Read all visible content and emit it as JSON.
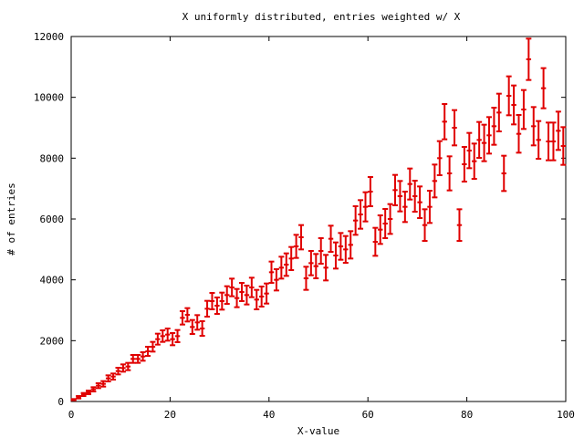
{
  "chart_data": {
    "type": "scatter",
    "title": "X uniformly distributed, entries weighted w/ X",
    "xlabel": "X-value",
    "ylabel": "# of entries",
    "xlim": [
      0,
      100
    ],
    "ylim": [
      0,
      12000
    ],
    "x_ticks": [
      0,
      20,
      40,
      60,
      80,
      100
    ],
    "y_ticks": [
      0,
      2000,
      4000,
      6000,
      8000,
      10000,
      12000
    ],
    "grid": false,
    "legend": "none",
    "color": "#e00000",
    "series": [
      {
        "points": [
          {
            "x": 0.5,
            "y": 60,
            "err": 20
          },
          {
            "x": 1.5,
            "y": 140,
            "err": 40
          },
          {
            "x": 2.5,
            "y": 230,
            "err": 50
          },
          {
            "x": 3.5,
            "y": 300,
            "err": 60
          },
          {
            "x": 4.5,
            "y": 400,
            "err": 70
          },
          {
            "x": 5.5,
            "y": 520,
            "err": 80
          },
          {
            "x": 6.5,
            "y": 580,
            "err": 90
          },
          {
            "x": 7.5,
            "y": 760,
            "err": 100
          },
          {
            "x": 8.5,
            "y": 820,
            "err": 100
          },
          {
            "x": 9.5,
            "y": 1000,
            "err": 110
          },
          {
            "x": 10.5,
            "y": 1100,
            "err": 120
          },
          {
            "x": 11.5,
            "y": 1150,
            "err": 120
          },
          {
            "x": 12.5,
            "y": 1400,
            "err": 130
          },
          {
            "x": 13.5,
            "y": 1400,
            "err": 130
          },
          {
            "x": 14.5,
            "y": 1480,
            "err": 140
          },
          {
            "x": 15.5,
            "y": 1650,
            "err": 150
          },
          {
            "x": 16.5,
            "y": 1800,
            "err": 160
          },
          {
            "x": 17.5,
            "y": 2050,
            "err": 180
          },
          {
            "x": 18.5,
            "y": 2150,
            "err": 190
          },
          {
            "x": 19.5,
            "y": 2200,
            "err": 200
          },
          {
            "x": 20.5,
            "y": 2050,
            "err": 200
          },
          {
            "x": 21.5,
            "y": 2150,
            "err": 200
          },
          {
            "x": 22.5,
            "y": 2750,
            "err": 220
          },
          {
            "x": 23.5,
            "y": 2850,
            "err": 220
          },
          {
            "x": 24.5,
            "y": 2450,
            "err": 230
          },
          {
            "x": 25.5,
            "y": 2600,
            "err": 240
          },
          {
            "x": 26.5,
            "y": 2400,
            "err": 240
          },
          {
            "x": 27.5,
            "y": 3050,
            "err": 260
          },
          {
            "x": 28.5,
            "y": 3300,
            "err": 270
          },
          {
            "x": 29.5,
            "y": 3150,
            "err": 270
          },
          {
            "x": 30.5,
            "y": 3300,
            "err": 280
          },
          {
            "x": 31.5,
            "y": 3500,
            "err": 290
          },
          {
            "x": 32.5,
            "y": 3750,
            "err": 290
          },
          {
            "x": 33.5,
            "y": 3400,
            "err": 300
          },
          {
            "x": 34.5,
            "y": 3600,
            "err": 300
          },
          {
            "x": 35.5,
            "y": 3500,
            "err": 310
          },
          {
            "x": 36.5,
            "y": 3750,
            "err": 320
          },
          {
            "x": 37.5,
            "y": 3350,
            "err": 320
          },
          {
            "x": 38.5,
            "y": 3450,
            "err": 330
          },
          {
            "x": 39.5,
            "y": 3550,
            "err": 330
          },
          {
            "x": 40.5,
            "y": 4250,
            "err": 350
          },
          {
            "x": 41.5,
            "y": 4000,
            "err": 350
          },
          {
            "x": 42.5,
            "y": 4400,
            "err": 360
          },
          {
            "x": 43.5,
            "y": 4500,
            "err": 370
          },
          {
            "x": 44.5,
            "y": 4700,
            "err": 380
          },
          {
            "x": 45.5,
            "y": 5100,
            "err": 380
          },
          {
            "x": 46.5,
            "y": 5400,
            "err": 400
          },
          {
            "x": 47.5,
            "y": 4050,
            "err": 380
          },
          {
            "x": 48.5,
            "y": 4550,
            "err": 400
          },
          {
            "x": 49.5,
            "y": 4450,
            "err": 400
          },
          {
            "x": 50.5,
            "y": 4950,
            "err": 420
          },
          {
            "x": 51.5,
            "y": 4400,
            "err": 420
          },
          {
            "x": 52.5,
            "y": 5350,
            "err": 430
          },
          {
            "x": 53.5,
            "y": 4800,
            "err": 430
          },
          {
            "x": 54.5,
            "y": 5100,
            "err": 440
          },
          {
            "x": 55.5,
            "y": 5000,
            "err": 440
          },
          {
            "x": 56.5,
            "y": 5150,
            "err": 450
          },
          {
            "x": 57.5,
            "y": 5950,
            "err": 470
          },
          {
            "x": 58.5,
            "y": 6150,
            "err": 470
          },
          {
            "x": 59.5,
            "y": 6400,
            "err": 480
          },
          {
            "x": 60.5,
            "y": 6900,
            "err": 480
          },
          {
            "x": 61.5,
            "y": 5250,
            "err": 460
          },
          {
            "x": 62.5,
            "y": 5650,
            "err": 470
          },
          {
            "x": 63.5,
            "y": 5850,
            "err": 480
          },
          {
            "x": 64.5,
            "y": 6000,
            "err": 490
          },
          {
            "x": 65.5,
            "y": 6950,
            "err": 500
          },
          {
            "x": 66.5,
            "y": 6750,
            "err": 500
          },
          {
            "x": 67.5,
            "y": 6400,
            "err": 500
          },
          {
            "x": 68.5,
            "y": 7150,
            "err": 510
          },
          {
            "x": 69.5,
            "y": 6750,
            "err": 510
          },
          {
            "x": 70.5,
            "y": 6550,
            "err": 520
          },
          {
            "x": 71.5,
            "y": 5800,
            "err": 520
          },
          {
            "x": 72.5,
            "y": 6400,
            "err": 530
          },
          {
            "x": 73.5,
            "y": 7250,
            "err": 540
          },
          {
            "x": 74.5,
            "y": 8000,
            "err": 560
          },
          {
            "x": 75.5,
            "y": 9200,
            "err": 580
          },
          {
            "x": 76.5,
            "y": 7500,
            "err": 560
          },
          {
            "x": 77.5,
            "y": 9000,
            "err": 580
          },
          {
            "x": 78.5,
            "y": 5800,
            "err": 520
          },
          {
            "x": 79.5,
            "y": 7800,
            "err": 570
          },
          {
            "x": 80.5,
            "y": 8250,
            "err": 580
          },
          {
            "x": 81.5,
            "y": 7900,
            "err": 580
          },
          {
            "x": 82.5,
            "y": 8600,
            "err": 590
          },
          {
            "x": 83.5,
            "y": 8500,
            "err": 600
          },
          {
            "x": 84.5,
            "y": 8750,
            "err": 600
          },
          {
            "x": 85.5,
            "y": 9050,
            "err": 610
          },
          {
            "x": 86.5,
            "y": 9500,
            "err": 620
          },
          {
            "x": 87.5,
            "y": 7500,
            "err": 580
          },
          {
            "x": 88.5,
            "y": 10050,
            "err": 640
          },
          {
            "x": 89.5,
            "y": 9750,
            "err": 640
          },
          {
            "x": 90.5,
            "y": 8800,
            "err": 620
          },
          {
            "x": 91.5,
            "y": 9600,
            "err": 640
          },
          {
            "x": 92.5,
            "y": 11250,
            "err": 680
          },
          {
            "x": 93.5,
            "y": 9050,
            "err": 630
          },
          {
            "x": 94.5,
            "y": 8600,
            "err": 620
          },
          {
            "x": 95.5,
            "y": 10300,
            "err": 660
          },
          {
            "x": 96.5,
            "y": 8550,
            "err": 620
          },
          {
            "x": 97.5,
            "y": 8550,
            "err": 620
          },
          {
            "x": 98.5,
            "y": 8900,
            "err": 630
          },
          {
            "x": 99.5,
            "y": 8400,
            "err": 620
          }
        ]
      }
    ]
  }
}
